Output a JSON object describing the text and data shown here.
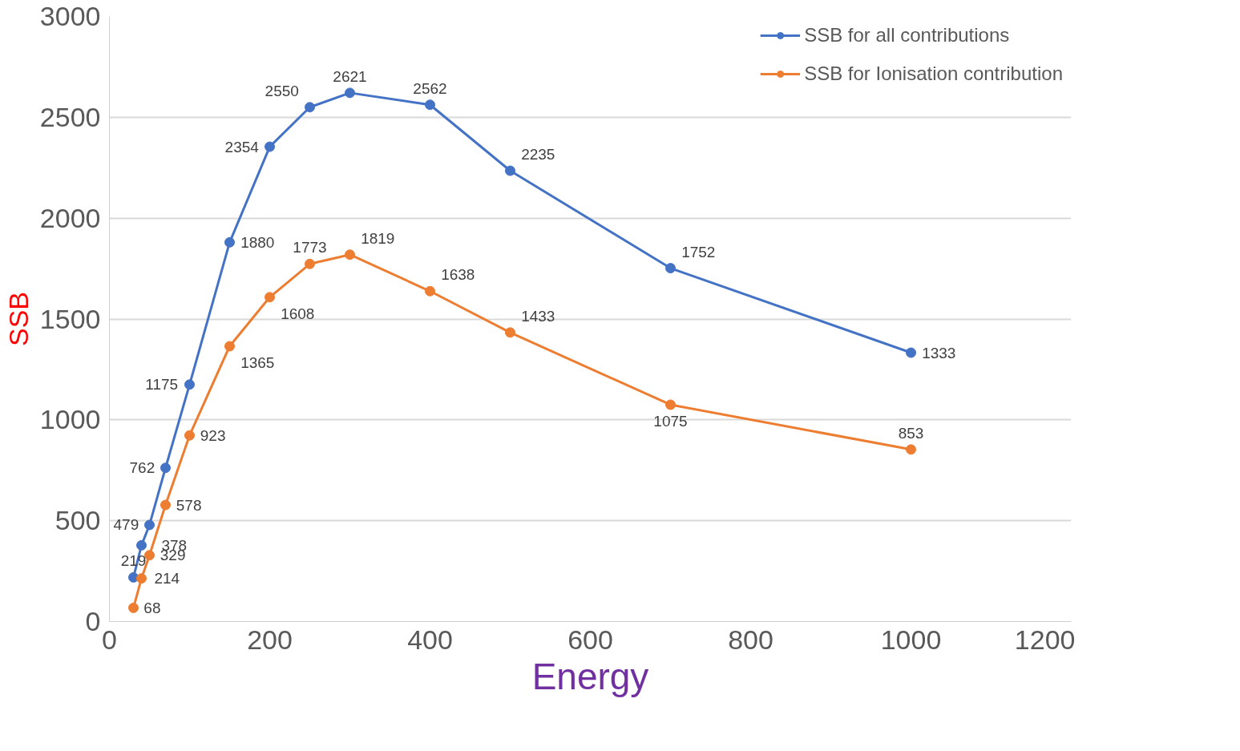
{
  "chart_data": {
    "type": "line",
    "xlabel": "Energy",
    "ylabel": "SSB",
    "xlim": [
      0,
      1200
    ],
    "xticks": [
      0,
      200,
      400,
      600,
      800,
      1000,
      1200
    ],
    "ylim": [
      0,
      3000
    ],
    "yticks": [
      0,
      500,
      1000,
      1500,
      2000,
      2500,
      3000
    ],
    "grid": "y",
    "legend": "top right",
    "marker": "circle",
    "line_style": "solid",
    "data_labels": true,
    "x": [
      30,
      40,
      50,
      70,
      100,
      150,
      200,
      250,
      300,
      400,
      500,
      700,
      1000
    ],
    "series": [
      {
        "name": "SSB for all contributions",
        "color": "#4472c4",
        "values": [
          219,
          378,
          479,
          762,
          1175,
          1880,
          2354,
          2550,
          2621,
          2562,
          2235,
          1752,
          1333
        ]
      },
      {
        "name": "SSB for Ionisation contribution",
        "color": "#ed7d31",
        "values": [
          68,
          214,
          329,
          578,
          923,
          1365,
          1608,
          1773,
          1819,
          1638,
          1433,
          1075,
          853
        ]
      }
    ]
  }
}
